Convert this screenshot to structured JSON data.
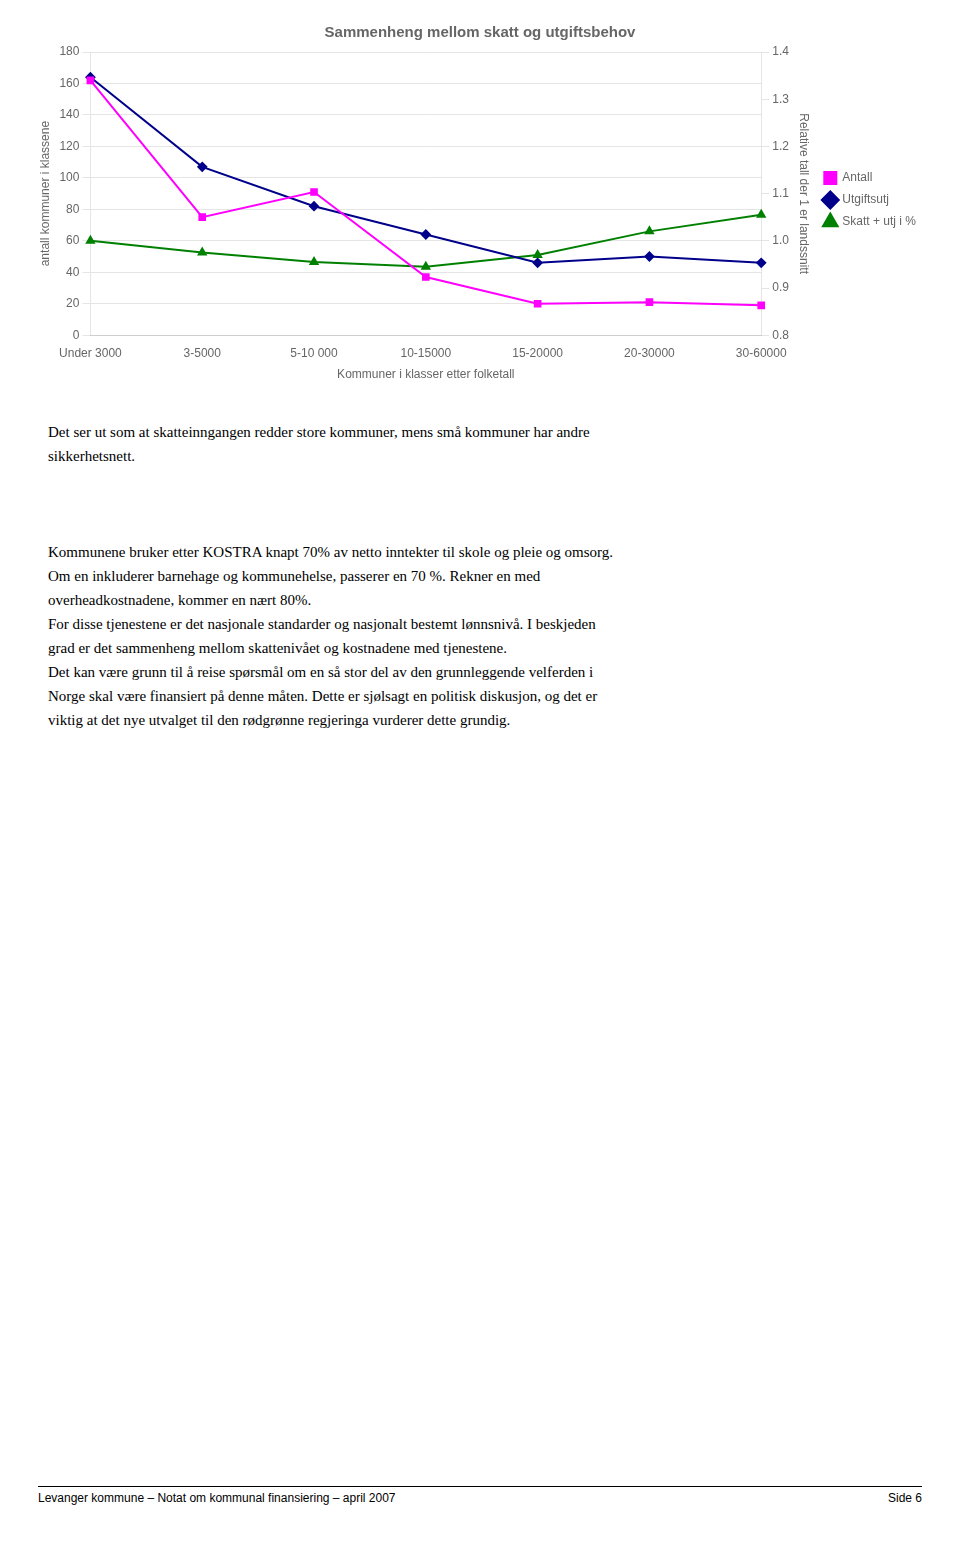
{
  "chart_data": {
    "type": "line",
    "title": "Sammenheng mellom skatt og utgiftsbehov",
    "categories": [
      "Under 3000",
      "3-5000",
      "5-10 000",
      "10-15000",
      "15-20000",
      "20-30000",
      "30-60000"
    ],
    "series": [
      {
        "name": "Antall",
        "color": "#ff00ff",
        "marker": "square",
        "values": [
          162,
          75,
          91,
          37,
          20,
          21,
          19
        ]
      },
      {
        "name": "Utgiftsutj",
        "color": "#00008b",
        "marker": "diamond",
        "values": [
          164,
          107,
          82,
          64,
          46,
          50,
          46
        ]
      },
      {
        "name": "Skatt + utj i %",
        "color": "#008000",
        "marker": "triangle",
        "axis": "y2",
        "values": [
          1.0,
          0.975,
          0.955,
          0.945,
          0.97,
          1.02,
          1.055
        ]
      }
    ],
    "xlabel": "Kommuner i klasser etter folketall",
    "ylabel": "antall kommuner i klassene",
    "y2label": "Relative tall der 1 er landssnitt",
    "ylim": [
      0,
      180
    ],
    "yticks": [
      0,
      20,
      40,
      60,
      80,
      100,
      120,
      140,
      160,
      180
    ],
    "y2lim": [
      0.8,
      1.4
    ],
    "y2ticks": [
      0.8,
      0.9,
      {
        "value": 1.0,
        "label": "1.0"
      },
      1.1,
      1.2,
      1.3,
      1.4
    ],
    "grid": true,
    "legend": "right"
  },
  "paragraphs": [
    [
      "Det ser ut som at skatteinngangen redder store kommuner, mens små kommuner har andre",
      "sikkerhetsnett."
    ],
    [
      "Kommunene bruker etter KOSTRA knapt 70% av netto inntekter til skole og pleie og omsorg.",
      "Om en inkluderer barnehage og kommunehelse, passerer en 70 %. Rekner en med",
      "overheadkostnadene, kommer en nært 80%.",
      "For disse tjenestene er det nasjonale standarder og nasjonalt bestemt lønnsnivå. I beskjeden",
      "grad er det sammenheng mellom skattenivået og kostnadene med tjenestene.",
      "Det kan være grunn til å reise spørsmål om en så stor del av den grunnleggende velferden i",
      "Norge skal være finansiert på denne måten. Dette er sjølsagt en politisk diskusjon, og det er",
      "viktig at det nye utvalget til den rødgrønne regjeringa vurderer dette grundig."
    ]
  ],
  "footer": {
    "left": "Levanger kommune – Notat om kommunal finansiering – april 2007",
    "right": "Side 6"
  }
}
